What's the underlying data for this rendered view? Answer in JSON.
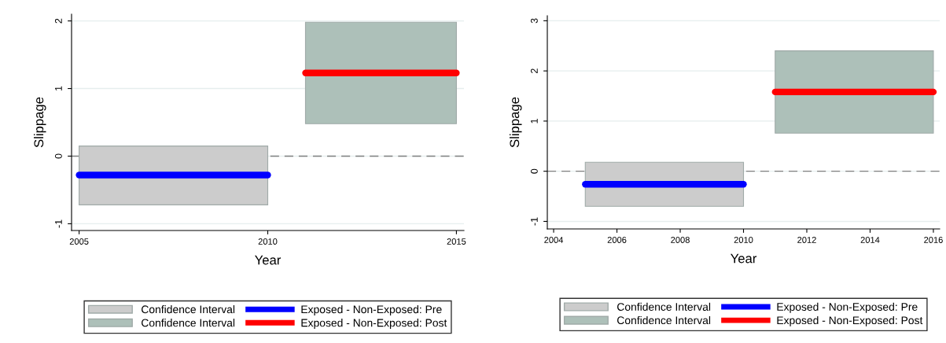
{
  "chart_data": [
    {
      "type": "line",
      "xlabel": "Year",
      "ylabel": "Slippage",
      "xlim": [
        2004.8,
        2015.2
      ],
      "xticks": [
        2005,
        2010,
        2015
      ],
      "ylim": [
        -1.1,
        2.1
      ],
      "yticks": [
        -1,
        0,
        1,
        2
      ],
      "grid": "y",
      "legend": "bottom",
      "line_style": "solid",
      "marker": "none",
      "ref_lines": [
        {
          "axis": "y",
          "value": 0,
          "color": "#808080",
          "line_style": "dashed"
        }
      ],
      "series": [
        {
          "type": "area",
          "name": "Confidence Interval",
          "color": "#cccccc",
          "x": [
            2005,
            2010,
            2010,
            2005
          ],
          "values": [
            0.15,
            0.15,
            -0.72,
            -0.72
          ]
        },
        {
          "type": "area",
          "name": "Confidence Interval",
          "color": "#adc0b9",
          "x": [
            2011,
            2015,
            2015,
            2011
          ],
          "values": [
            1.98,
            1.98,
            0.48,
            0.48
          ]
        },
        {
          "name": "Exposed - Non-Exposed: Pre",
          "color": "#0000ff",
          "x": [
            2005,
            2010
          ],
          "values": [
            -0.28,
            -0.28
          ]
        },
        {
          "name": "Exposed - Non-Exposed: Post",
          "color": "#ff0000",
          "x": [
            2011,
            2015
          ],
          "values": [
            1.23,
            1.23
          ]
        }
      ]
    },
    {
      "type": "line",
      "xlabel": "Year",
      "ylabel": "Slippage",
      "xlim": [
        2003.8,
        2016.2
      ],
      "xticks": [
        2004,
        2006,
        2008,
        2010,
        2012,
        2014,
        2016
      ],
      "ylim": [
        -1.15,
        3.1
      ],
      "yticks": [
        -1,
        0,
        1,
        2,
        3
      ],
      "grid": "y",
      "legend": "bottom",
      "line_style": "solid",
      "marker": "none",
      "ref_lines": [
        {
          "axis": "y",
          "value": 0,
          "color": "#808080",
          "line_style": "dashed"
        }
      ],
      "series": [
        {
          "type": "area",
          "name": "Confidence Interval",
          "color": "#cccccc",
          "x": [
            2005,
            2010,
            2010,
            2005
          ],
          "values": [
            0.18,
            0.18,
            -0.7,
            -0.7
          ]
        },
        {
          "type": "area",
          "name": "Confidence Interval",
          "color": "#adc0b9",
          "x": [
            2011,
            2016,
            2016,
            2011
          ],
          "values": [
            2.4,
            2.4,
            0.76,
            0.76
          ]
        },
        {
          "name": "Exposed - Non-Exposed: Pre",
          "color": "#0000ff",
          "x": [
            2005,
            2010
          ],
          "values": [
            -0.26,
            -0.26
          ]
        },
        {
          "name": "Exposed - Non-Exposed: Post",
          "color": "#ff0000",
          "x": [
            2011,
            2016
          ],
          "values": [
            1.58,
            1.58
          ]
        }
      ]
    }
  ]
}
